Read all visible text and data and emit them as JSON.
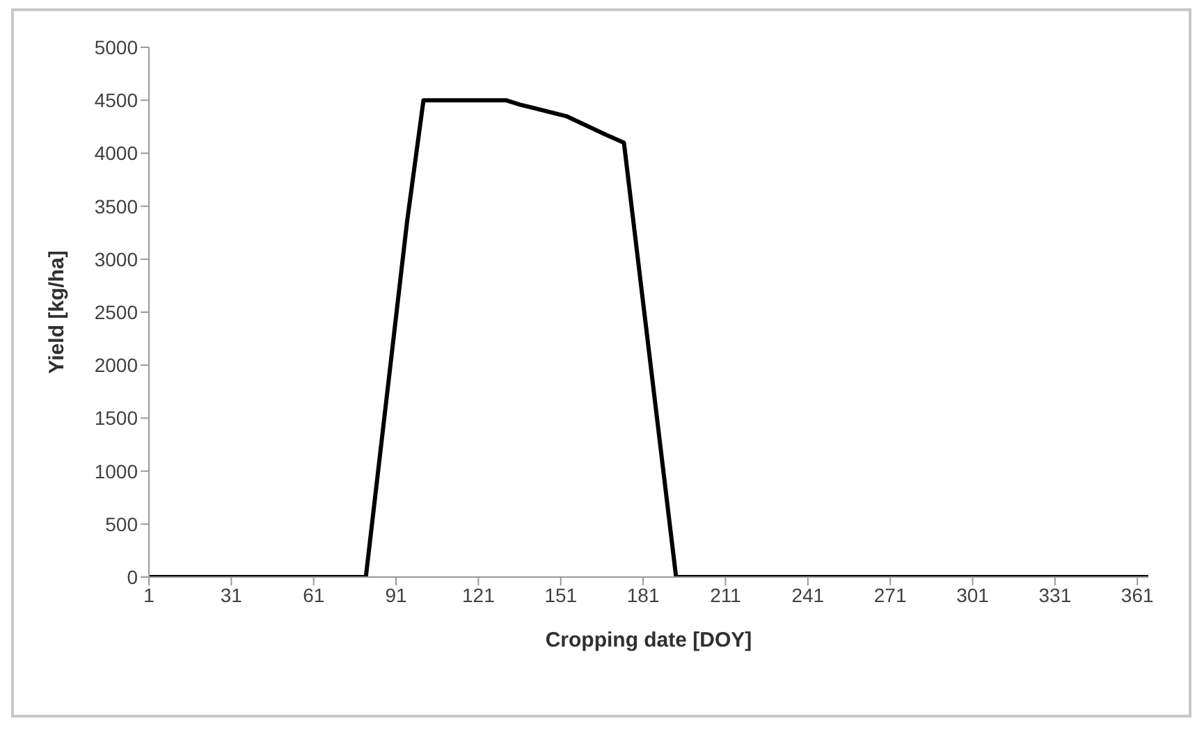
{
  "chart_data": {
    "type": "line",
    "xlabel": "Cropping date [DOY]",
    "ylabel": "Yield [kg/ha]",
    "x": [
      1,
      80,
      95,
      101,
      131,
      136,
      153,
      167,
      174,
      193,
      365
    ],
    "series": [
      {
        "color": "#000000",
        "values": [
          0,
          0,
          3350,
          4500,
          4500,
          4460,
          4350,
          4180,
          4100,
          0,
          0
        ]
      }
    ],
    "xlim": [
      1,
      365
    ],
    "xticks": [
      1,
      31,
      61,
      91,
      121,
      151,
      181,
      211,
      241,
      271,
      301,
      331,
      361
    ],
    "ylim": [
      0,
      5000
    ],
    "yticks": [
      0,
      500,
      1000,
      1500,
      2000,
      2500,
      3000,
      3500,
      4000,
      4500,
      5000
    ],
    "grid": false,
    "legend": false,
    "marker": "none",
    "line_style": "solid"
  }
}
